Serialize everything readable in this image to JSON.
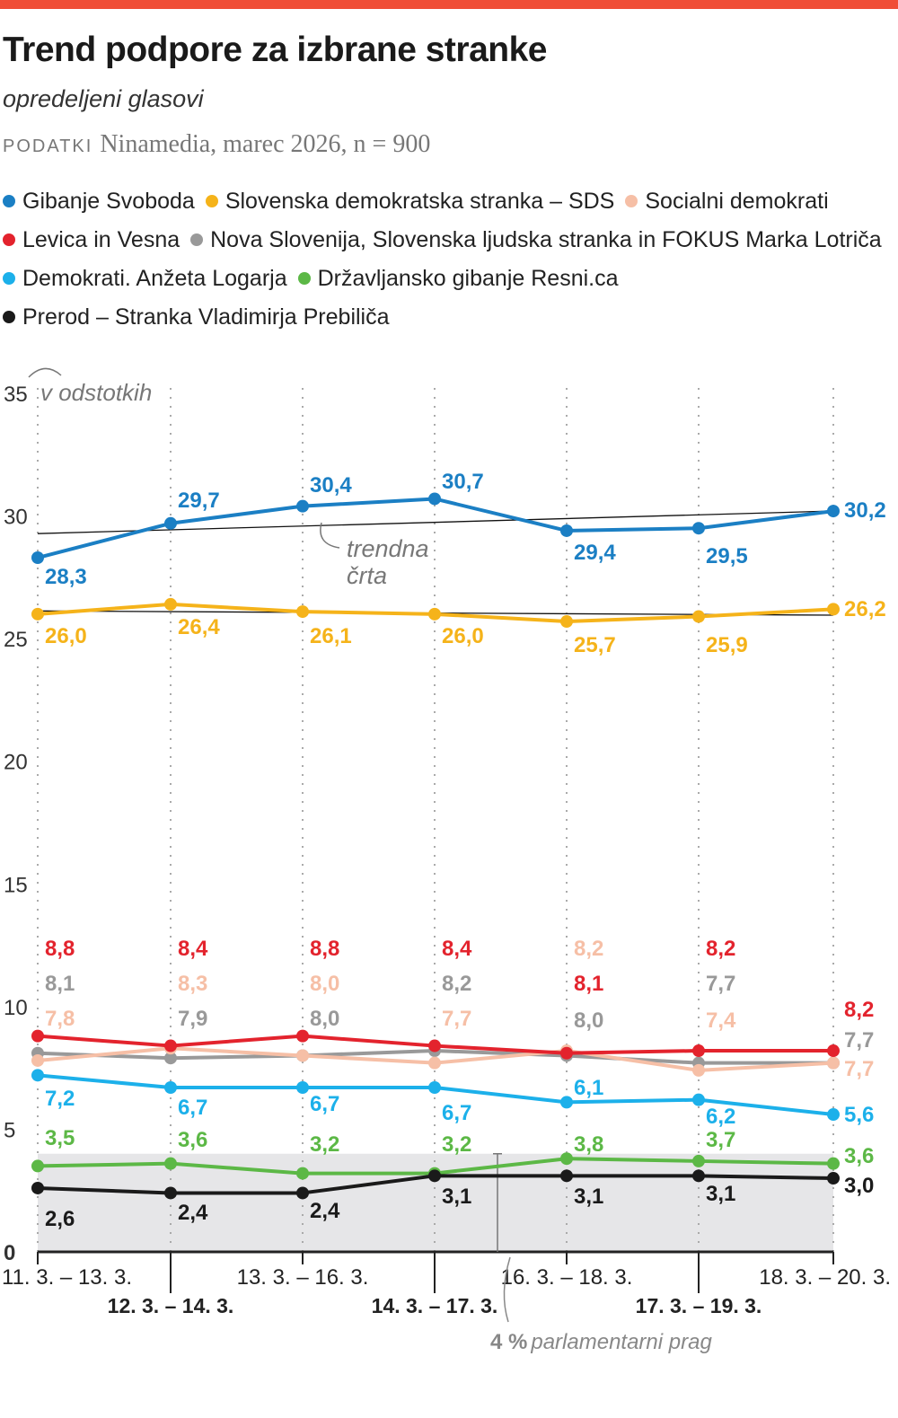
{
  "title": "Trend podpore za izbrane stranke",
  "subtitle": "opredeljeni glasovi",
  "source": {
    "label": "PODATKI",
    "text": "Ninamedia, marec 2026, n = 900"
  },
  "accent_color": "#f04e37",
  "chart_data": {
    "type": "line",
    "unit_label": "v odstotkih",
    "ylim": [
      0,
      35
    ],
    "yticks": [
      "0",
      "5",
      "10",
      "15",
      "20",
      "25",
      "30",
      "35"
    ],
    "categories": [
      "11. 3. – 13. 3.",
      "12. 3. – 14. 3.",
      "13. 3. – 16. 3.",
      "14. 3. – 17. 3.",
      "16. 3. – 18. 3.",
      "17. 3. – 19. 3.",
      "18. 3. – 20. 3."
    ],
    "grid": "vertical dotted",
    "legend_placement": "top",
    "series": [
      {
        "name": "Gibanje Svoboda",
        "color": "#1b7fc4",
        "values": [
          28.3,
          29.7,
          30.4,
          30.7,
          29.4,
          29.5,
          30.2
        ],
        "labels": [
          "28,3",
          "29,7",
          "30,4",
          "30,7",
          "29,4",
          "29,5",
          "30,2"
        ],
        "trend": true
      },
      {
        "name": "Slovenska demokratska stranka – SDS",
        "color": "#f5b31a",
        "values": [
          26.0,
          26.4,
          26.1,
          26.0,
          25.7,
          25.9,
          26.2
        ],
        "labels": [
          "26,0",
          "26,4",
          "26,1",
          "26,0",
          "25,7",
          "25,9",
          "26,2"
        ],
        "trend": true
      },
      {
        "name": "Socialni demokrati",
        "color": "#f6bfa6",
        "values": [
          7.8,
          8.3,
          8.0,
          7.7,
          8.2,
          7.4,
          7.7
        ],
        "labels": [
          "7,8",
          "8,3",
          "8,0",
          "7,7",
          "8,2",
          "7,4",
          "7,7"
        ]
      },
      {
        "name": "Levica in Vesna",
        "color": "#e3232d",
        "values": [
          8.8,
          8.4,
          8.8,
          8.4,
          8.1,
          8.2,
          8.2
        ],
        "labels": [
          "8,8",
          "8,4",
          "8,8",
          "8,4",
          "8,1",
          "8,2",
          "8,2"
        ]
      },
      {
        "name": "Nova Slovenija, Slovenska ljudska stranka in FOKUS Marka Lotriča",
        "color": "#999999",
        "values": [
          8.1,
          7.9,
          8.0,
          8.2,
          8.0,
          7.7,
          7.7
        ],
        "labels": [
          "8,1",
          "7,9",
          "8,0",
          "8,2",
          "8,0",
          "7,7",
          "7,7"
        ]
      },
      {
        "name": "Demokrati. Anžeta Logarja",
        "color": "#1cb0ea",
        "values": [
          7.2,
          6.7,
          6.7,
          6.7,
          6.1,
          6.2,
          5.6
        ],
        "labels": [
          "7,2",
          "6,7",
          "6,7",
          "6,7",
          "6,1",
          "6,2",
          "5,6"
        ]
      },
      {
        "name": "Državljansko gibanje Resni.ca",
        "color": "#5cb846",
        "values": [
          3.5,
          3.6,
          3.2,
          3.2,
          3.8,
          3.7,
          3.6
        ],
        "labels": [
          "3,5",
          "3,6",
          "3,2",
          "3,2",
          "3,8",
          "3,7",
          "3,6"
        ]
      },
      {
        "name": "Prerod – Stranka Vladimirja Prebiliča",
        "color": "#1a1a1a",
        "values": [
          2.6,
          2.4,
          2.4,
          3.1,
          3.1,
          3.1,
          3.0
        ],
        "labels": [
          "2,6",
          "2,4",
          "2,4",
          "3,1",
          "3,1",
          "3,1",
          "3,0"
        ]
      }
    ],
    "threshold": {
      "value": 4,
      "label_value": "4 %",
      "label_text": "parlamentarni prag",
      "color": "#e6e6e8"
    },
    "annotations": {
      "trend_line": [
        "trendna",
        "črta"
      ]
    }
  }
}
